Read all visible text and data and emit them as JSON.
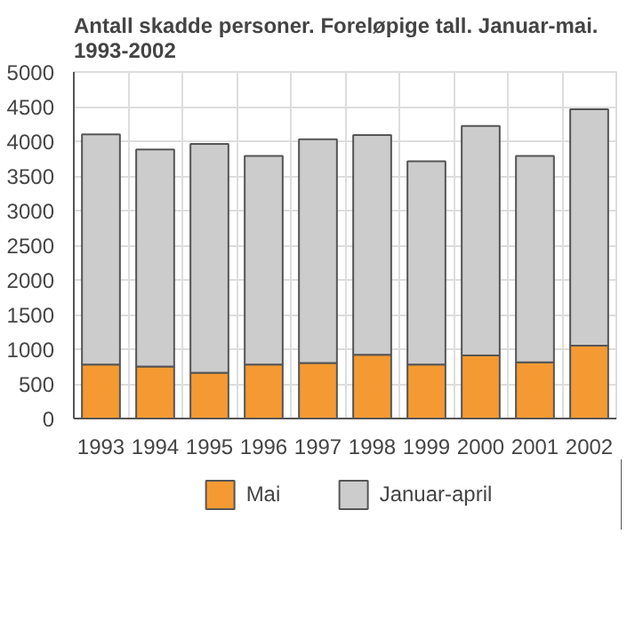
{
  "chart_data": {
    "type": "bar",
    "title": "Antall skadde personer. Foreløpige tall. Januar-mai.\n1993-2002",
    "categories": [
      "1993",
      "1994",
      "1995",
      "1996",
      "1997",
      "1998",
      "1999",
      "2000",
      "2001",
      "2002"
    ],
    "stacked": true,
    "series": [
      {
        "name": "Mai",
        "color": "#f59a32",
        "values": [
          780,
          750,
          660,
          780,
          800,
          920,
          780,
          910,
          810,
          1050
        ]
      },
      {
        "name": "Januar-april",
        "color": "#cccccc",
        "values": [
          3320,
          3130,
          3300,
          3010,
          3230,
          3170,
          2930,
          3310,
          2980,
          3410
        ]
      }
    ],
    "ylim": [
      0,
      5000
    ],
    "yticks": [
      0,
      500,
      1000,
      1500,
      2000,
      2500,
      3000,
      3500,
      4000,
      4500,
      5000
    ],
    "grid": true,
    "legend": "bottom"
  }
}
